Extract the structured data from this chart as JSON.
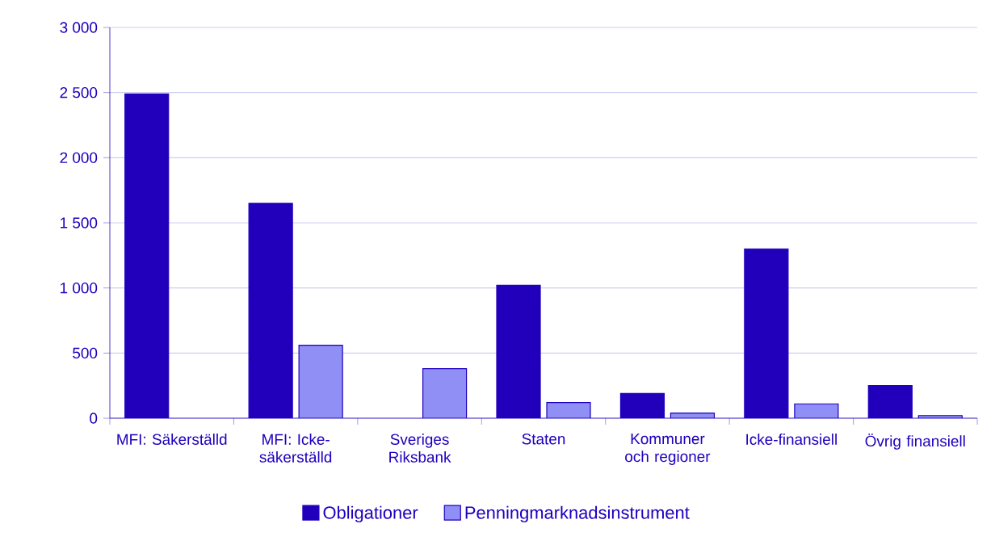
{
  "chart_data": {
    "type": "bar",
    "categories": [
      "MFI: Säkerställd",
      "MFI: Icke-säkerställd",
      "Sveriges Riksbank",
      "Staten",
      "Kommuner och regioner",
      "Icke-finansiell",
      "Övrig finansiell"
    ],
    "series": [
      {
        "name": "Obligationer",
        "color": "#2200bb",
        "values": [
          2490,
          1650,
          null,
          1020,
          190,
          1300,
          250
        ]
      },
      {
        "name": "Penningmarknadsinstrument",
        "color": "#8f8ff5",
        "values": [
          null,
          560,
          380,
          120,
          40,
          110,
          20
        ]
      }
    ],
    "ylim": [
      0,
      3000
    ],
    "yticks": [
      0,
      500,
      {
        "value": 1000,
        "label": "1 000"
      },
      {
        "value": 1500,
        "label": "1 500"
      },
      {
        "value": 2000,
        "label": "2 000"
      },
      {
        "value": 2500,
        "label": "2 500"
      },
      {
        "value": 3000,
        "label": "3 000"
      }
    ],
    "grid": "y",
    "legend": "bottom"
  }
}
